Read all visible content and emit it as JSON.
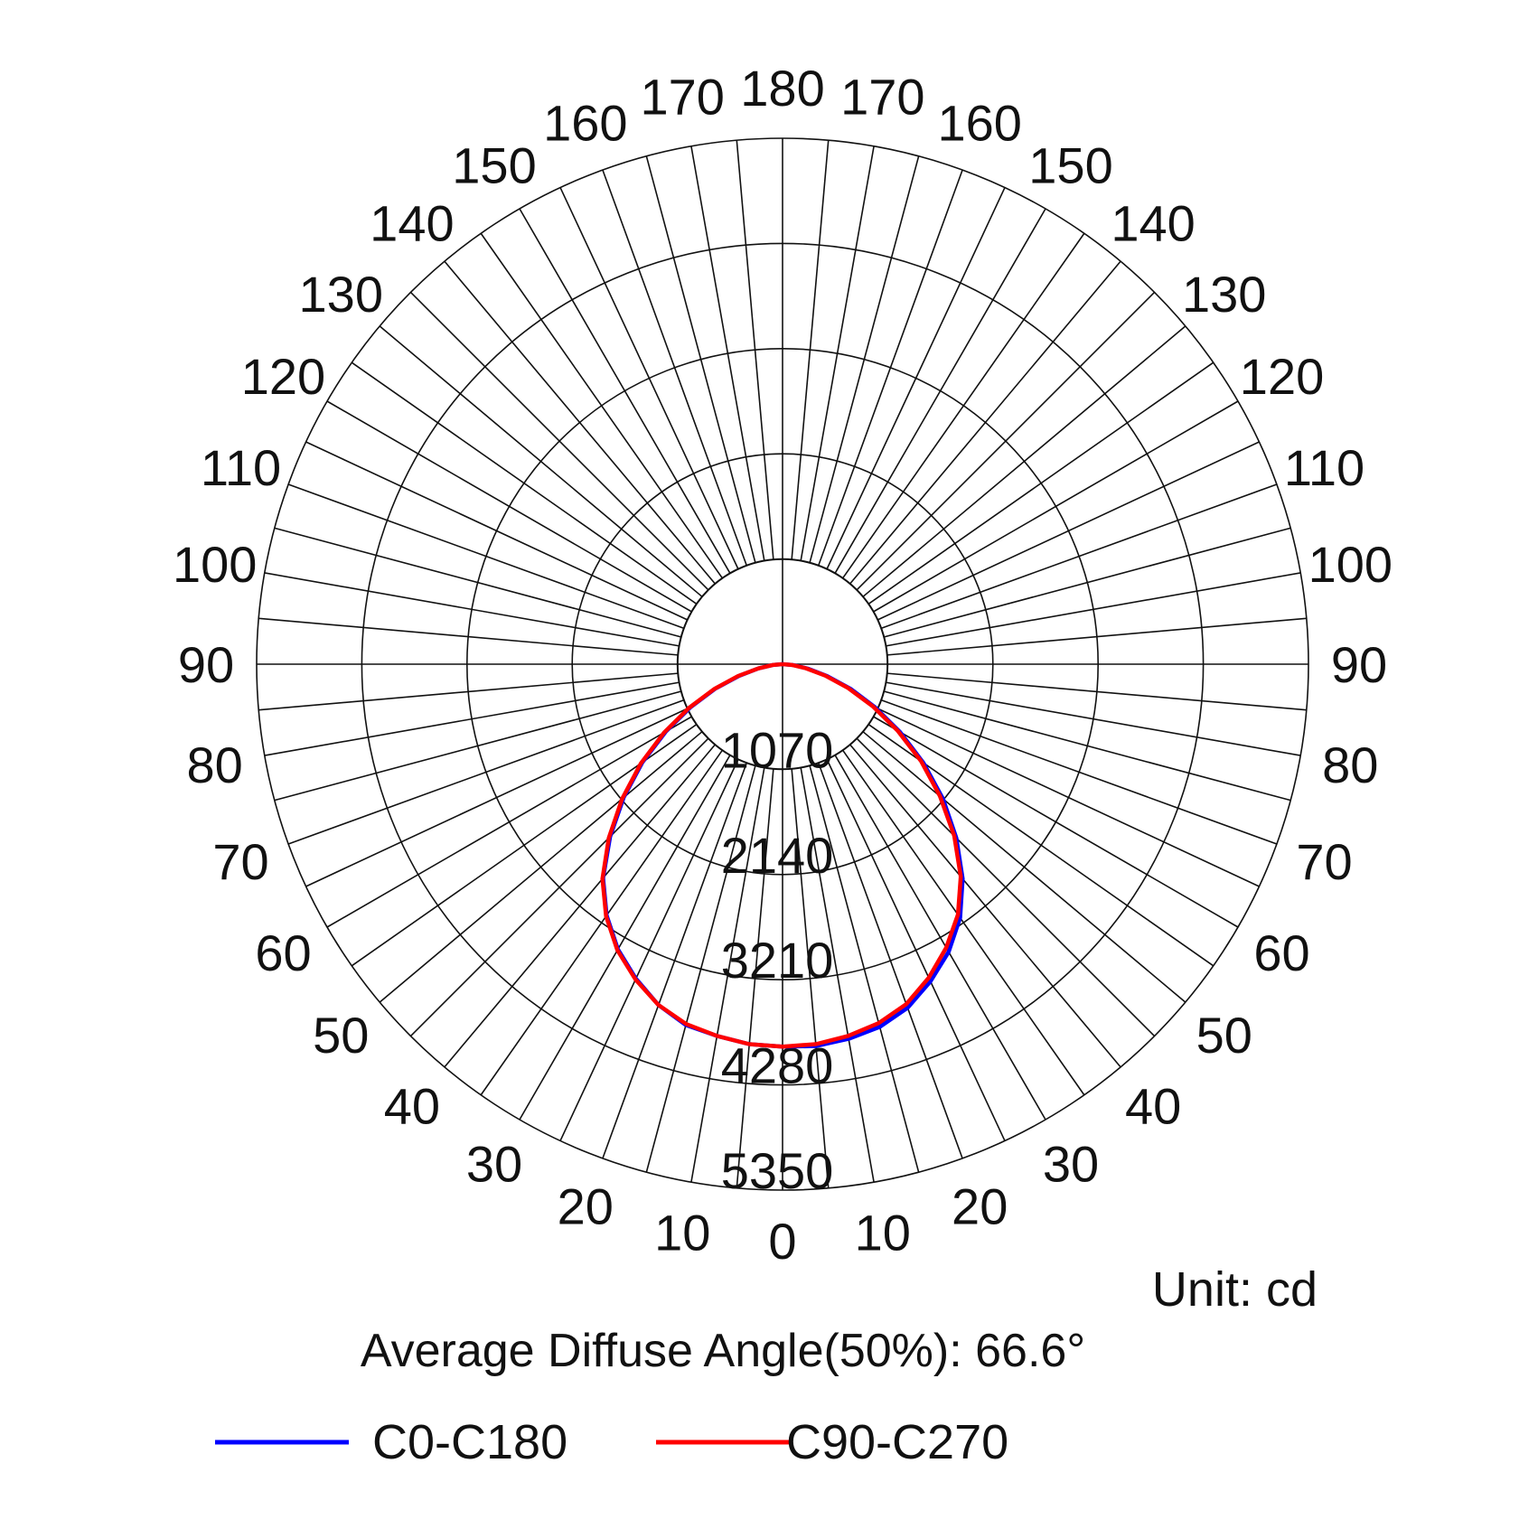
{
  "chart_data": {
    "type": "polar",
    "subtitle": "Average Diffuse Angle(50%): 66.6°",
    "unit_label": "Unit: cd",
    "radial_ticks": [
      1070,
      2140,
      3210,
      4280,
      5350
    ],
    "radial_max": 5350,
    "angle_ticks": [
      0,
      10,
      20,
      30,
      40,
      50,
      60,
      70,
      80,
      90,
      100,
      110,
      120,
      130,
      140,
      150,
      160,
      170,
      180
    ],
    "zero_at": "bottom",
    "grid": true,
    "legend_position": "bottom",
    "series": [
      {
        "name": "C0-C180",
        "color": "#0000ff",
        "angles": [
          0,
          5,
          10,
          15,
          20,
          25,
          30,
          35,
          40,
          45,
          50,
          55,
          60,
          65,
          70,
          75,
          80,
          85,
          90
        ],
        "values_right": [
          3890,
          3900,
          3870,
          3820,
          3720,
          3560,
          3380,
          3150,
          2850,
          2500,
          2130,
          1750,
          1380,
          1040,
          740,
          470,
          260,
          110,
          0
        ],
        "values_left": [
          3890,
          3880,
          3840,
          3800,
          3690,
          3530,
          3350,
          3120,
          2840,
          2480,
          2110,
          1740,
          1370,
          1030,
          730,
          460,
          250,
          100,
          0
        ]
      },
      {
        "name": "C90-C270",
        "color": "#ff0000",
        "angles": [
          0,
          5,
          10,
          15,
          20,
          25,
          30,
          35,
          40,
          45,
          50,
          55,
          60,
          65,
          70,
          75,
          80,
          85,
          90
        ],
        "values_right": [
          3890,
          3880,
          3840,
          3780,
          3680,
          3520,
          3330,
          3110,
          2820,
          2470,
          2090,
          1720,
          1350,
          1010,
          710,
          450,
          240,
          100,
          0
        ],
        "values_left": [
          3890,
          3880,
          3840,
          3790,
          3690,
          3540,
          3360,
          3130,
          2850,
          2500,
          2130,
          1760,
          1390,
          1050,
          740,
          470,
          250,
          100,
          0
        ]
      }
    ]
  }
}
